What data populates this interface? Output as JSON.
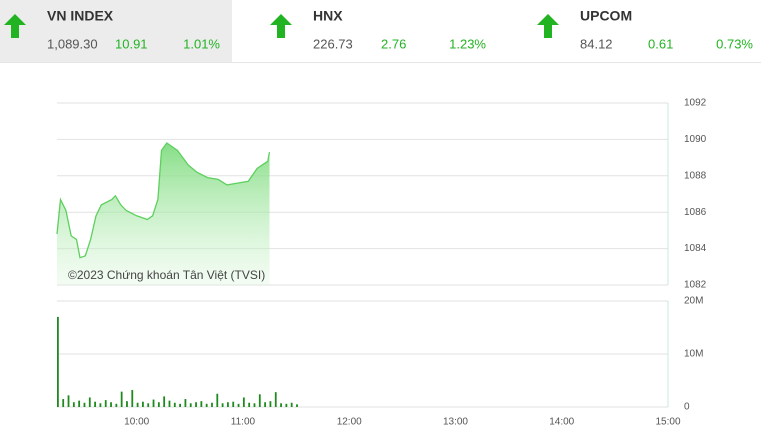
{
  "indices": [
    {
      "name": "VN INDEX",
      "value": "1,089.30",
      "change": "10.91",
      "percent": "1.01%"
    },
    {
      "name": "HNX",
      "value": "226.73",
      "change": "2.76",
      "percent": "1.23%"
    },
    {
      "name": "UPCOM",
      "value": "84.12",
      "change": "0.61",
      "percent": "0.73%"
    }
  ],
  "chart_data": [
    {
      "type": "area",
      "watermark": "©2023 Chứng khoán Tân Việt (TVSI)",
      "color": "#5ecf5e",
      "x": [
        555,
        557,
        560,
        563,
        566,
        568,
        571,
        574,
        577,
        580,
        586,
        588,
        591,
        594,
        600,
        606,
        609,
        612,
        614,
        617,
        623,
        629,
        634,
        640,
        646,
        651,
        657,
        663,
        668,
        674,
        675
      ],
      "values": [
        1084.8,
        1086.7,
        1086.1,
        1084.7,
        1084.5,
        1083.5,
        1083.6,
        1084.5,
        1085.8,
        1086.4,
        1086.7,
        1086.9,
        1086.4,
        1086.1,
        1085.8,
        1085.6,
        1085.8,
        1086.7,
        1089.4,
        1089.8,
        1089.4,
        1088.6,
        1088.2,
        1087.9,
        1087.8,
        1087.5,
        1087.6,
        1087.7,
        1088.4,
        1088.8,
        1089.3
      ],
      "xlim": [
        555,
        900
      ],
      "ylim": [
        1082,
        1092
      ],
      "yticks": [
        1082,
        1084,
        1086,
        1088,
        1090,
        1092
      ],
      "grid": true
    },
    {
      "type": "bar",
      "color": "#1e8a1e",
      "x": [
        555,
        558,
        561,
        564,
        567,
        570,
        573,
        576,
        579,
        582,
        585,
        588,
        591,
        594,
        597,
        600,
        603,
        606,
        609,
        612,
        615,
        618,
        621,
        624,
        627,
        630,
        633,
        636,
        639,
        642,
        645,
        648,
        651,
        654,
        657,
        660,
        663,
        666,
        669,
        672,
        675,
        678,
        681,
        684,
        687,
        690
      ],
      "values": [
        17000000,
        1500000,
        2200000,
        900000,
        1200000,
        800000,
        1800000,
        1000000,
        700000,
        1300000,
        900000,
        600000,
        2900000,
        1100000,
        3200000,
        800000,
        1000000,
        700000,
        1400000,
        900000,
        2000000,
        1200000,
        800000,
        600000,
        1500000,
        700000,
        900000,
        1100000,
        600000,
        800000,
        2500000,
        700000,
        900000,
        1000000,
        600000,
        1800000,
        800000,
        700000,
        2400000,
        900000,
        1100000,
        2800000,
        700000,
        600000,
        800000,
        500000
      ],
      "xlim": [
        555,
        900
      ],
      "xticks": [
        {
          "value": 600,
          "label": "10:00"
        },
        {
          "value": 660,
          "label": "11:00"
        },
        {
          "value": 720,
          "label": "12:00"
        },
        {
          "value": 780,
          "label": "13:00"
        },
        {
          "value": 840,
          "label": "14:00"
        },
        {
          "value": 900,
          "label": "15:00"
        }
      ],
      "ylim": [
        0,
        20000000
      ],
      "yticks": [
        0,
        {
          "value": 10000000,
          "label": "10M"
        },
        {
          "value": 20000000,
          "label": "20M"
        }
      ],
      "grid": true
    }
  ]
}
